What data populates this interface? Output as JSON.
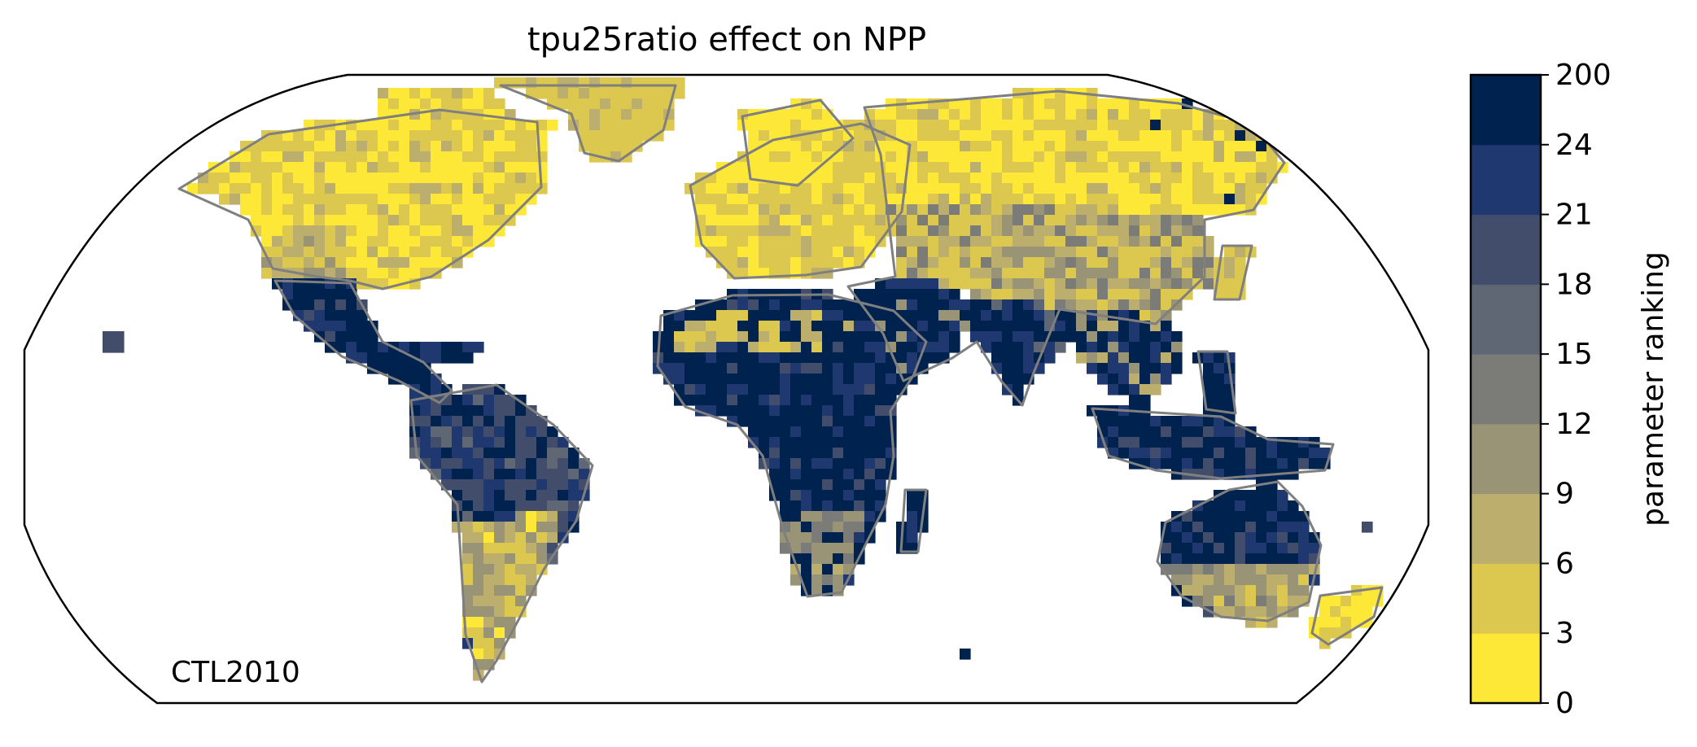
{
  "title": "tpu25ratio effect on NPP",
  "map": {
    "projection_label": "CTL2010",
    "projection": "Robinson",
    "coastline_color": "#7f7f7f",
    "outline_color": "#000000"
  },
  "colorbar": {
    "label": "parameter ranking",
    "ticks": [
      "0",
      "3",
      "6",
      "9",
      "12",
      "15",
      "18",
      "21",
      "24",
      "200"
    ],
    "colors": [
      "#fde737",
      "#dcc84e",
      "#bcaf6e",
      "#9a9476",
      "#7b7b78",
      "#5f6775",
      "#414d6b",
      "#1f3870",
      "#00224e"
    ]
  },
  "regions": {
    "north_america": "yellow",
    "greenland": "yellow",
    "mexico": "navy",
    "central_america": "navy",
    "amazon": "blue-grey",
    "southern_cone": "tan",
    "sahara": "navy",
    "mediterranean": "tan",
    "central_africa": "navy",
    "southern_africa": "grey",
    "europe": "yellow",
    "siberia": "yellow",
    "central_asia": "grey",
    "south_asia": "navy",
    "southeast_asia": "navy",
    "australia_north": "navy",
    "australia_south": "tan",
    "new_zealand": "yellow"
  }
}
